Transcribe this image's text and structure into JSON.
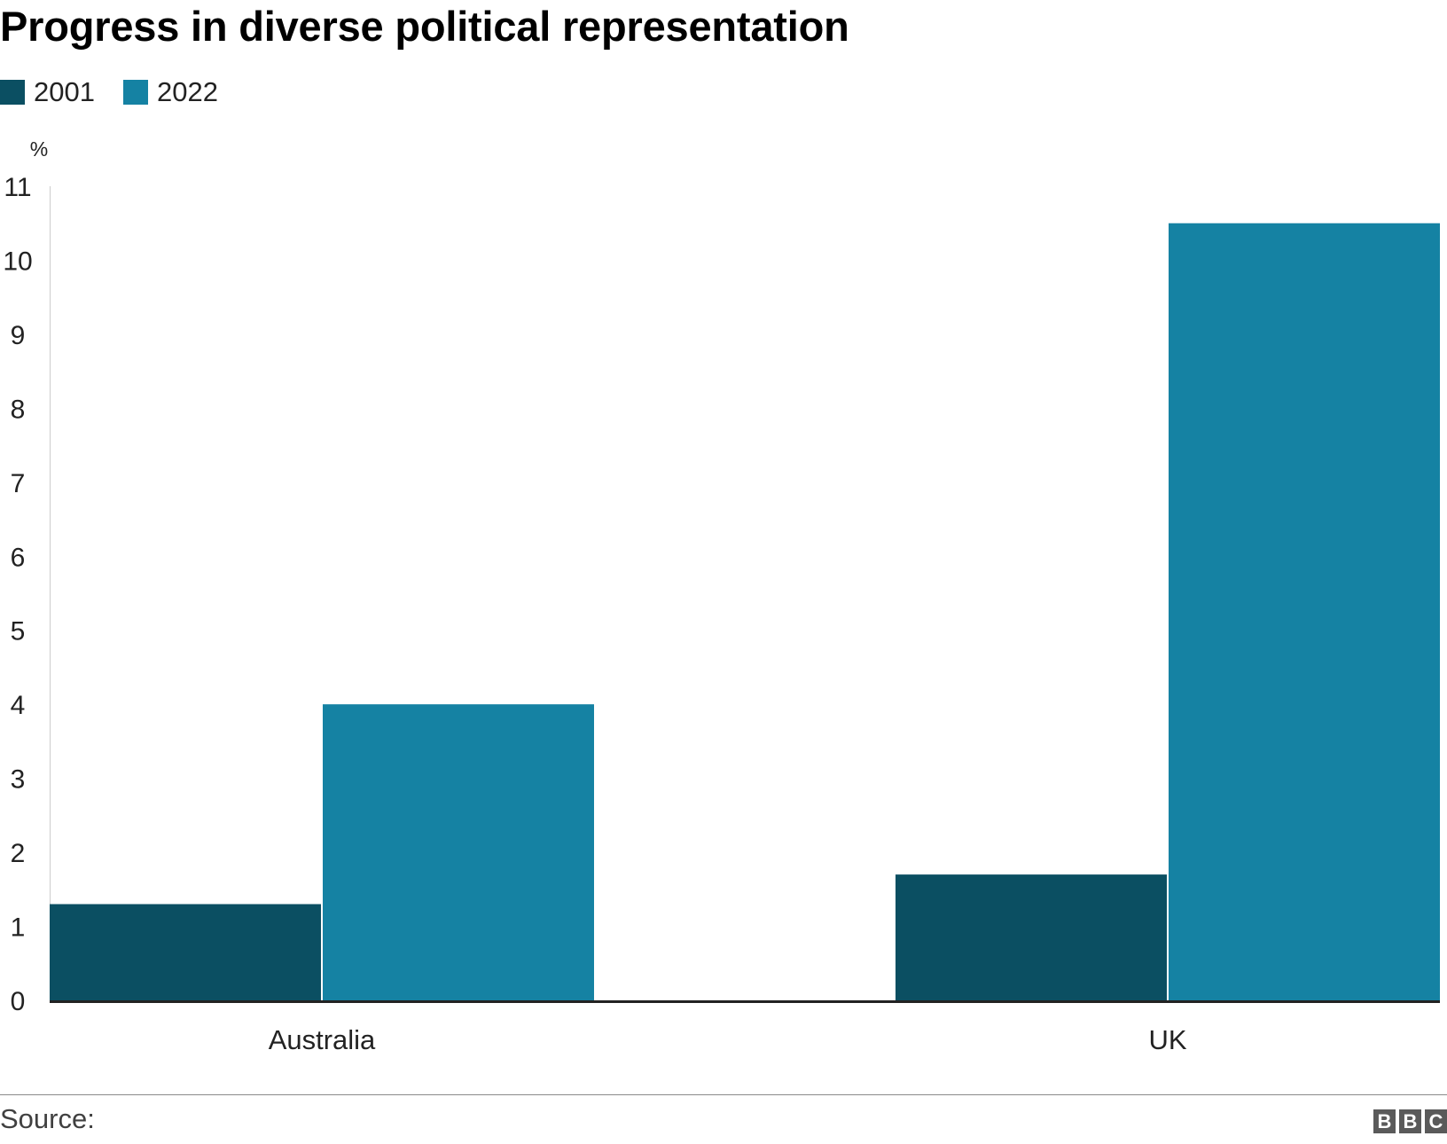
{
  "colors": {
    "series_2001": "#0b4f62",
    "series_2022": "#1582a3",
    "axis": "#222222",
    "text": "#222222"
  },
  "footer": {
    "source_label": "Source:",
    "logo_letters": [
      "B",
      "B",
      "C"
    ]
  },
  "chart_data": {
    "type": "bar",
    "title": "Progress in diverse political representation",
    "ylabel": "%",
    "xlabel": "",
    "categories": [
      "Australia",
      "UK"
    ],
    "series": [
      {
        "name": "2001",
        "values": [
          1.3,
          1.7
        ]
      },
      {
        "name": "2022",
        "values": [
          4.0,
          10.5
        ]
      }
    ],
    "ylim": [
      0,
      11
    ],
    "yticks": [
      0,
      1,
      2,
      3,
      4,
      5,
      6,
      7,
      8,
      9,
      10,
      11
    ],
    "legend_position": "top-left",
    "grid": false
  }
}
